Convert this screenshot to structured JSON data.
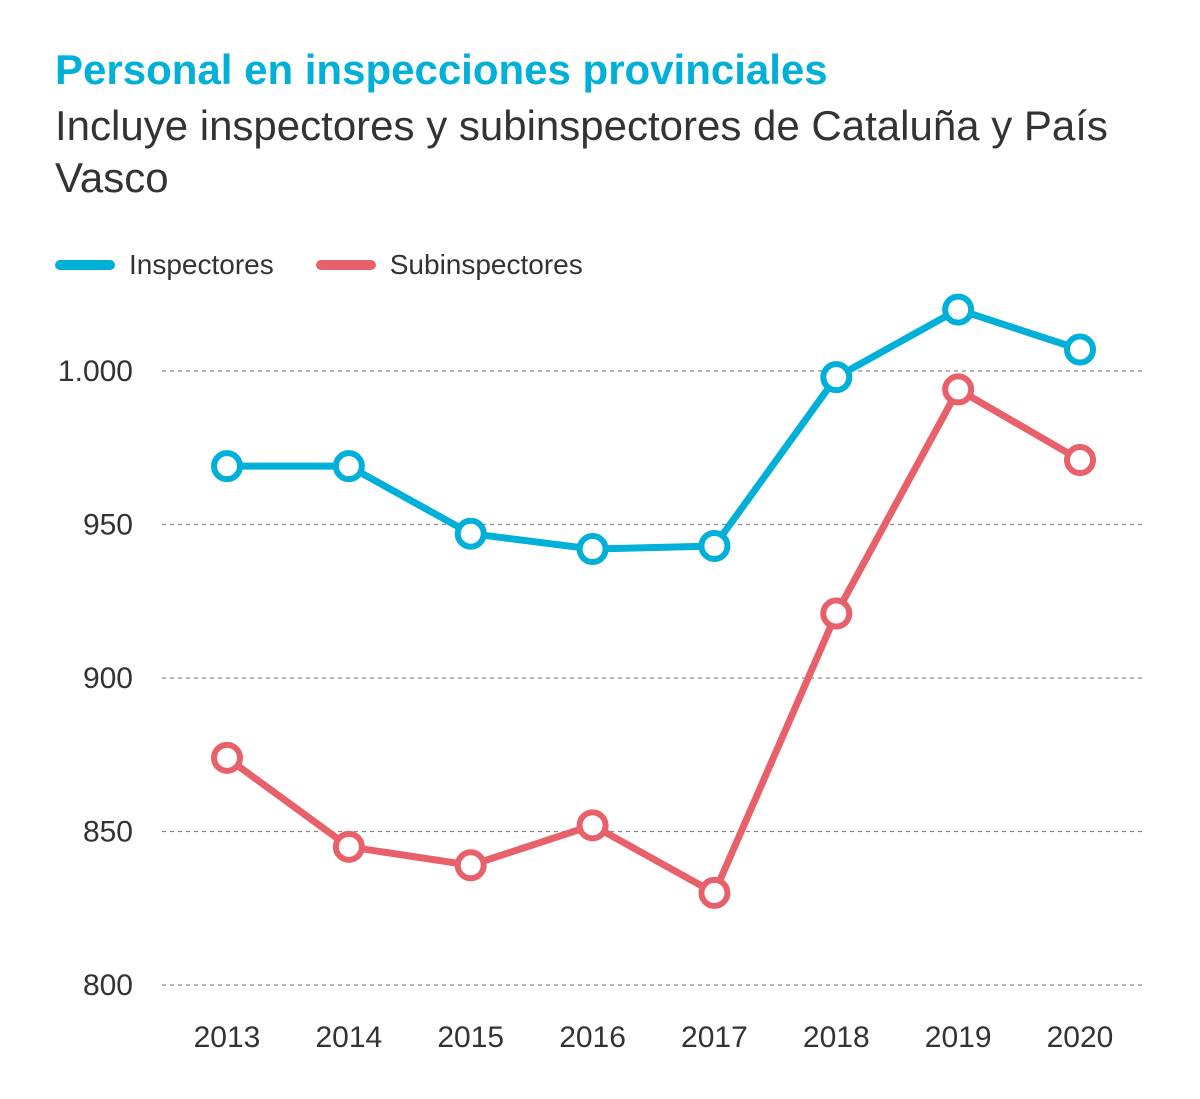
{
  "colors": {
    "title": "#00b0d8",
    "inspectores": "#00b0d8",
    "subinspectores": "#e8616a",
    "grid": "#888888",
    "text": "#333333"
  },
  "chart_data": {
    "type": "line",
    "title": "Personal en inspecciones provinciales",
    "subtitle": "Incluye inspectores y subinspectores de Cataluña y País Vasco",
    "categories": [
      "2013",
      "2014",
      "2015",
      "2016",
      "2017",
      "2018",
      "2019",
      "2020"
    ],
    "series": [
      {
        "name": "Inspectores",
        "color": "#00b0d8",
        "values": [
          969,
          969,
          947,
          942,
          943,
          998,
          1020,
          1007
        ]
      },
      {
        "name": "Subinspectores",
        "color": "#e8616a",
        "values": [
          874,
          845,
          839,
          852,
          830,
          921,
          994,
          971
        ]
      }
    ],
    "yticks": [
      {
        "value": 800,
        "label": "800"
      },
      {
        "value": 850,
        "label": "850"
      },
      {
        "value": 900,
        "label": "900"
      },
      {
        "value": 950,
        "label": "950"
      },
      {
        "value": 1000,
        "label": "1.000"
      }
    ],
    "ylim": [
      800,
      1000
    ],
    "grid": true,
    "legend": "top-left"
  }
}
